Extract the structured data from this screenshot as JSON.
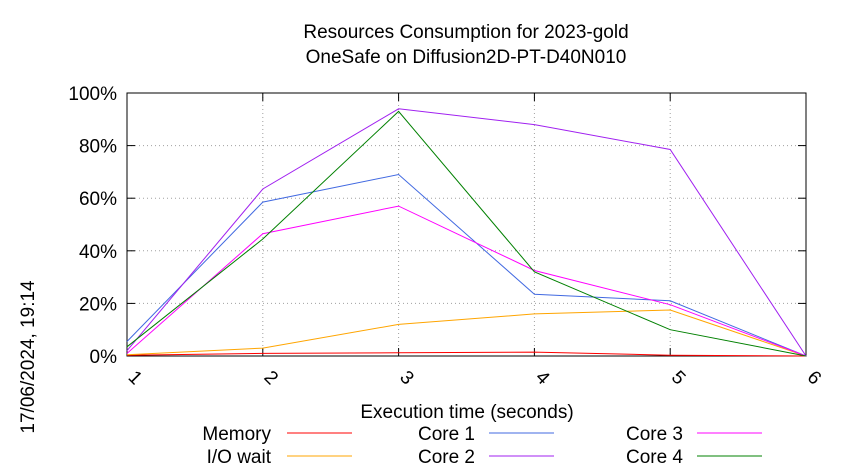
{
  "chart_data": {
    "type": "line",
    "title": "Resources Consumption for 2023-gold",
    "subtitle": "OneSafe on Diffusion2D-PT-D40N010",
    "xlabel": "Execution time (seconds)",
    "ylabel": "",
    "side_label": "17/06/2024, 19:14",
    "x": [
      1,
      2,
      3,
      4,
      5,
      6
    ],
    "xlim": [
      1,
      6
    ],
    "ylim": [
      0,
      100
    ],
    "x_ticks": [
      "1",
      "2",
      "3",
      "4",
      "5",
      "6"
    ],
    "y_ticks": [
      {
        "value": 0,
        "label": "0%"
      },
      {
        "value": 20,
        "label": "20%"
      },
      {
        "value": 40,
        "label": "40%"
      },
      {
        "value": 60,
        "label": "60%"
      },
      {
        "value": 80,
        "label": "80%"
      },
      {
        "value": 100,
        "label": "100%"
      }
    ],
    "grid": true,
    "legend_position": "bottom",
    "series": [
      {
        "name": "Memory",
        "color": "#ff0000",
        "values": [
          0.3,
          1.0,
          1.2,
          1.5,
          0.3,
          0
        ]
      },
      {
        "name": "I/O wait",
        "color": "#ffa500",
        "values": [
          0.5,
          3,
          12,
          16,
          17.5,
          0
        ]
      },
      {
        "name": "Core 1",
        "color": "#4169e1",
        "values": [
          5.5,
          58.5,
          69,
          23.5,
          21,
          0
        ]
      },
      {
        "name": "Core 2",
        "color": "#a020f0",
        "values": [
          2,
          63.5,
          94,
          88,
          78.5,
          0
        ]
      },
      {
        "name": "Core 3",
        "color": "#ff00ff",
        "values": [
          1,
          46.5,
          57,
          32.5,
          19.5,
          0
        ]
      },
      {
        "name": "Core 4",
        "color": "#008000",
        "values": [
          3.5,
          44.5,
          93,
          32,
          10,
          0
        ]
      }
    ]
  }
}
